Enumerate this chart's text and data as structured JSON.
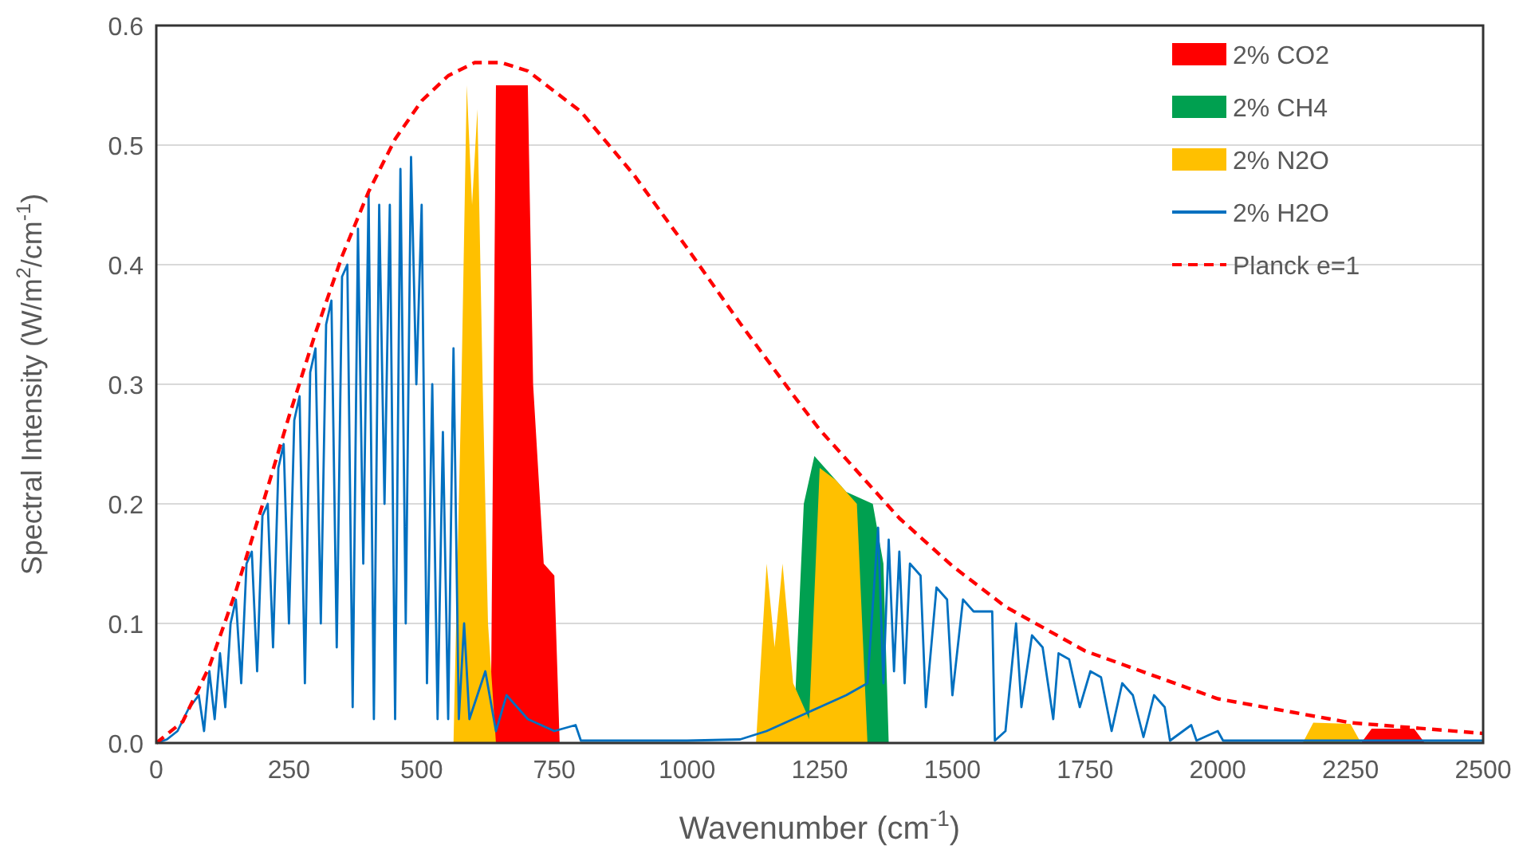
{
  "chart_data": {
    "type": "area",
    "xlabel": "Wavenumber (cm$^{-1}$)",
    "ylabel": "Spectral Intensity (W/m$^{2}$/cm$^{-1}$)",
    "xlim": [
      0,
      2500
    ],
    "xticks": [
      0,
      250,
      500,
      750,
      1000,
      1250,
      1500,
      1750,
      2000,
      2250,
      2500
    ],
    "ylim": [
      0,
      0.6
    ],
    "yticks": [
      {
        "value": 0,
        "label": "0.0"
      },
      0.1,
      0.2,
      0.3,
      0.4,
      0.5,
      0.6
    ],
    "grid": "y",
    "legend": "top right",
    "series": [
      {
        "name": "2% CO2",
        "color": "#ff0000",
        "x": [
          630,
          640,
          700,
          710,
          730,
          750,
          760,
          2270,
          2290,
          2370,
          2390
        ],
        "values": [
          0,
          0.55,
          0.55,
          0.3,
          0.15,
          0.14,
          0,
          0,
          0.012,
          0.012,
          0
        ]
      },
      {
        "name": "2% CH4",
        "color": "#00a050",
        "x": [
          1200,
          1210,
          1220,
          1240,
          1260,
          1300,
          1350,
          1370,
          1380
        ],
        "values": [
          0,
          0.1,
          0.2,
          0.24,
          0.23,
          0.21,
          0.2,
          0.15,
          0
        ]
      },
      {
        "name": "2% N2O",
        "color": "#ffc000",
        "x": [
          560,
          575,
          585,
          595,
          605,
          615,
          625,
          640,
          1130,
          1150,
          1165,
          1180,
          1200,
          1230,
          1250,
          1280,
          1320,
          1340,
          2160,
          2180,
          2250,
          2270
        ],
        "values": [
          0,
          0.3,
          0.55,
          0.45,
          0.53,
          0.3,
          0.1,
          0,
          0,
          0.15,
          0.08,
          0.15,
          0.05,
          0.02,
          0.23,
          0.22,
          0.2,
          0,
          0,
          0.017,
          0.016,
          0
        ]
      },
      {
        "name": "2% H2O",
        "type": "line",
        "color": "#0070c0",
        "line_style": "solid",
        "x": [
          0,
          20,
          40,
          60,
          80,
          90,
          100,
          110,
          120,
          130,
          140,
          150,
          160,
          170,
          180,
          190,
          200,
          210,
          220,
          230,
          240,
          250,
          260,
          270,
          280,
          290,
          300,
          310,
          320,
          330,
          340,
          350,
          360,
          370,
          380,
          390,
          400,
          410,
          420,
          430,
          440,
          450,
          460,
          470,
          480,
          490,
          500,
          510,
          520,
          530,
          540,
          550,
          560,
          570,
          580,
          590,
          620,
          640,
          660,
          700,
          750,
          790,
          800,
          900,
          1000,
          1100,
          1150,
          1200,
          1250,
          1300,
          1340,
          1360,
          1370,
          1380,
          1390,
          1400,
          1410,
          1420,
          1440,
          1450,
          1470,
          1490,
          1500,
          1520,
          1540,
          1560,
          1575,
          1580,
          1600,
          1620,
          1630,
          1650,
          1670,
          1690,
          1700,
          1720,
          1740,
          1760,
          1780,
          1800,
          1820,
          1840,
          1860,
          1880,
          1900,
          1910,
          1950,
          1960,
          2000,
          2010,
          2100,
          2500
        ],
        "values": [
          0,
          0.003,
          0.01,
          0.028,
          0.04,
          0.01,
          0.06,
          0.02,
          0.075,
          0.03,
          0.1,
          0.12,
          0.05,
          0.15,
          0.16,
          0.06,
          0.19,
          0.2,
          0.08,
          0.23,
          0.25,
          0.1,
          0.27,
          0.29,
          0.05,
          0.31,
          0.33,
          0.1,
          0.35,
          0.37,
          0.08,
          0.39,
          0.4,
          0.03,
          0.43,
          0.15,
          0.46,
          0.02,
          0.45,
          0.2,
          0.45,
          0.02,
          0.48,
          0.1,
          0.49,
          0.3,
          0.45,
          0.05,
          0.3,
          0.02,
          0.26,
          0.02,
          0.33,
          0.02,
          0.1,
          0.02,
          0.06,
          0.01,
          0.04,
          0.02,
          0.01,
          0.015,
          0.002,
          0.002,
          0.002,
          0.003,
          0.01,
          0.02,
          0.03,
          0.04,
          0.05,
          0.18,
          0.05,
          0.17,
          0.06,
          0.16,
          0.05,
          0.15,
          0.14,
          0.03,
          0.13,
          0.12,
          0.04,
          0.12,
          0.11,
          0.11,
          0.11,
          0.002,
          0.01,
          0.1,
          0.03,
          0.09,
          0.08,
          0.02,
          0.075,
          0.07,
          0.03,
          0.06,
          0.055,
          0.01,
          0.05,
          0.04,
          0.005,
          0.04,
          0.03,
          0.002,
          0.015,
          0.002,
          0.01,
          0.002,
          0.002,
          0.002
        ]
      },
      {
        "name": "Planck e=1",
        "type": "line",
        "color": "#ff0000",
        "line_style": "dashed",
        "x": [
          0,
          50,
          100,
          150,
          200,
          250,
          300,
          350,
          400,
          450,
          500,
          550,
          600,
          650,
          700,
          800,
          900,
          1000,
          1100,
          1200,
          1250,
          1400,
          1500,
          1600,
          1750,
          2000,
          2250,
          2500
        ],
        "values": [
          0,
          0.018,
          0.064,
          0.127,
          0.199,
          0.273,
          0.343,
          0.407,
          0.461,
          0.505,
          0.537,
          0.558,
          0.569,
          0.569,
          0.562,
          0.528,
          0.475,
          0.414,
          0.351,
          0.291,
          0.262,
          0.188,
          0.148,
          0.114,
          0.077,
          0.037,
          0.017,
          0.008
        ]
      }
    ]
  }
}
